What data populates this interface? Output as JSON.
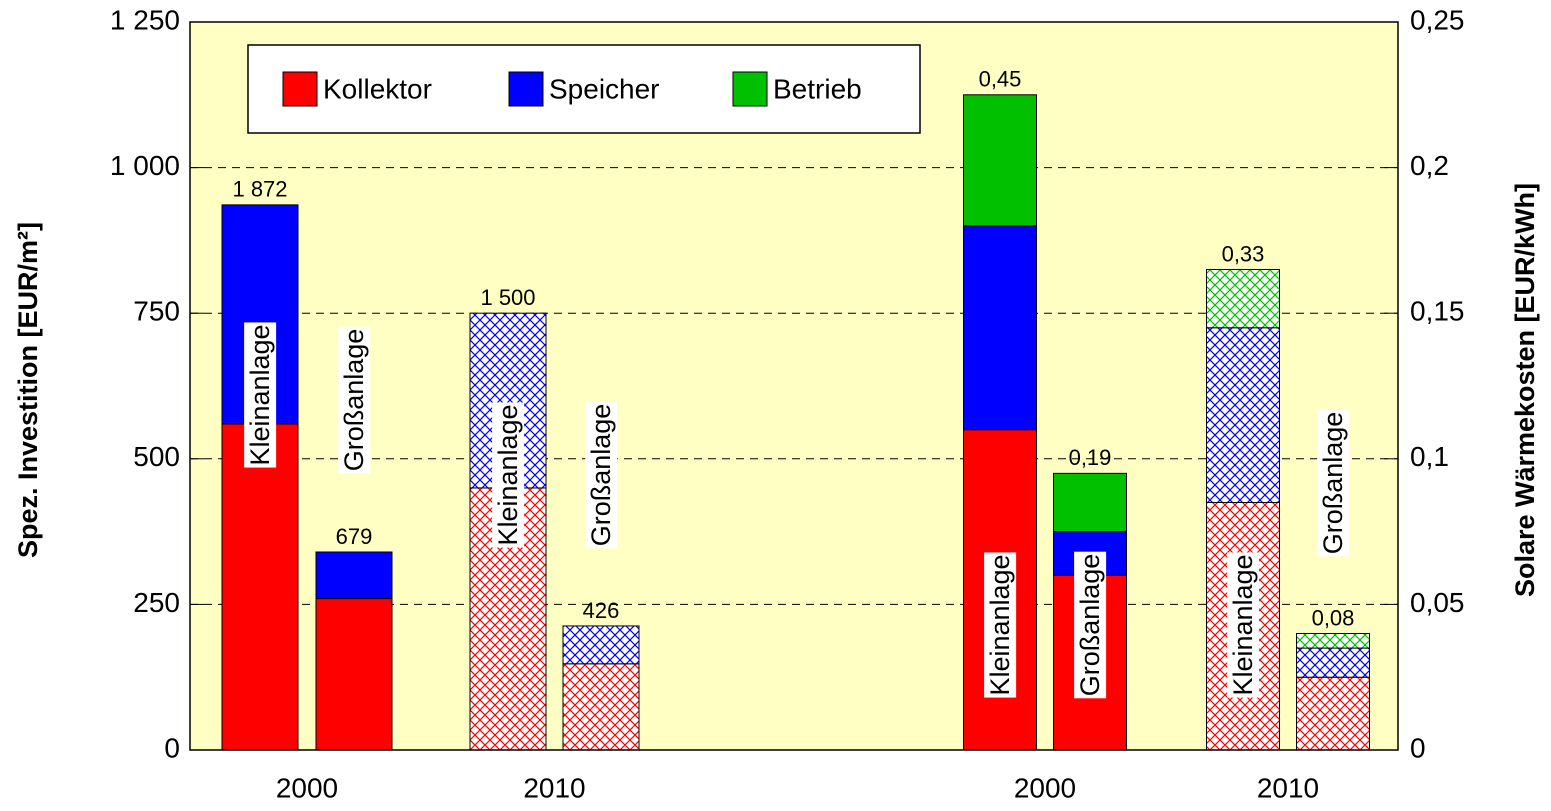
{
  "chart_data": {
    "type": "bar",
    "ylabel": "Spez. Investition [EUR/m²]",
    "y2label": "Solare Wärmekosten [EUR/kWh]",
    "ylim": [
      0,
      1250
    ],
    "yticks": [
      0,
      250,
      500,
      750,
      {
        "value": 1000,
        "label": "1 000"
      },
      {
        "value": 1250,
        "label": "1 250"
      }
    ],
    "y2lim": [
      0,
      0.25
    ],
    "y2ticks": [
      {
        "value": 0,
        "label": "0"
      },
      {
        "value": 0.05,
        "label": "0,05"
      },
      {
        "value": 0.1,
        "label": "0,1"
      },
      {
        "value": 0.15,
        "label": "0,15"
      },
      {
        "value": 0.2,
        "label": "0,2"
      },
      {
        "value": 0.25,
        "label": "0,25"
      }
    ],
    "grid": true,
    "categories": [
      "Kleinanlage",
      "Großanlage",
      "Kleinanlage",
      "Großanlage",
      "Kleinanlage",
      "Großanlage",
      "Kleinanlage",
      "Großanlage"
    ],
    "x_groups": [
      "2000",
      "2010",
      "2000",
      "2010"
    ],
    "bar_axis": [
      "y",
      "y",
      "y",
      "y",
      "y2",
      "y2",
      "y2",
      "y2"
    ],
    "hatched": [
      false,
      false,
      true,
      true,
      false,
      false,
      true,
      true
    ],
    "total_labels": [
      "1 872",
      "679",
      "1 500",
      "426",
      "0,45",
      "0,19",
      "0,33",
      "0,08"
    ],
    "series": [
      {
        "name": "Kollektor",
        "color": "#ff0000",
        "values": [
          560,
          260,
          450,
          148,
          0.11,
          0.06,
          0.085,
          0.025
        ]
      },
      {
        "name": "Speicher",
        "color": "#0000ff",
        "values": [
          376,
          80,
          300,
          65,
          0.07,
          0.015,
          0.06,
          0.01
        ]
      },
      {
        "name": "Betrieb",
        "color": "#00c000",
        "values": [
          null,
          null,
          null,
          null,
          0.045,
          0.02,
          0.02,
          0.005
        ]
      }
    ],
    "legend": "top-left"
  }
}
